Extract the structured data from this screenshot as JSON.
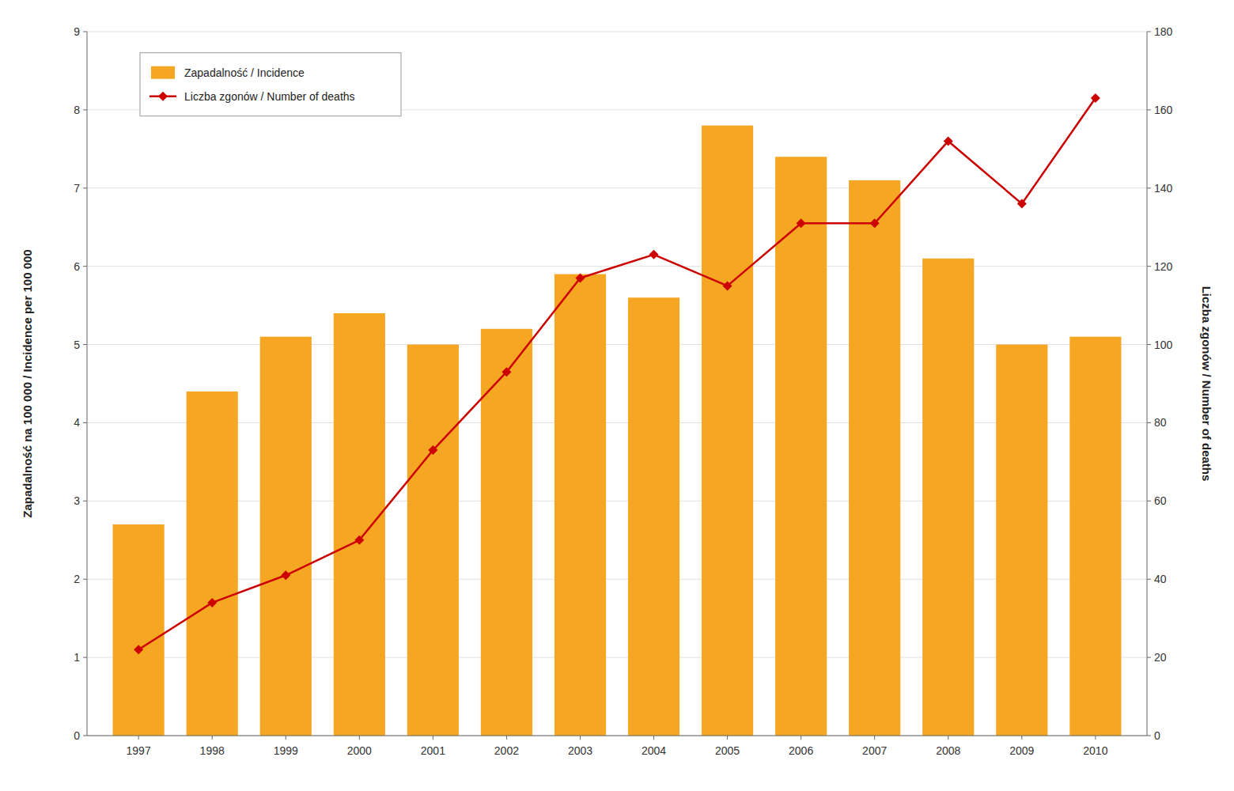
{
  "chart_data": {
    "type": "bar",
    "x": [
      1997,
      1998,
      1999,
      2000,
      2001,
      2002,
      2003,
      2004,
      2005,
      2006,
      2007,
      2008,
      2009,
      2010
    ],
    "xlim": [
      1996.3,
      2010.7
    ],
    "xticks": [
      1997,
      1998,
      1999,
      2000,
      2001,
      2002,
      2003,
      2004,
      2005,
      2006,
      2007,
      2008,
      2009,
      2010
    ],
    "ylabel": "Zapadalność na 100 000 / Incidence per 100 000",
    "y2label": "Liczba zgonów / Number of deaths",
    "ylim": [
      0,
      9
    ],
    "yticks": [
      0,
      1,
      2,
      3,
      4,
      5,
      6,
      7,
      8,
      9
    ],
    "y2lim": [
      0,
      180
    ],
    "y2ticks": [
      0,
      20,
      40,
      60,
      80,
      100,
      120,
      140,
      160,
      180
    ],
    "grid": true,
    "legend": "upper left",
    "series": [
      {
        "name": "Zapadalność / Incidence",
        "type": "bar",
        "color": "#F5A623",
        "values": [
          2.7,
          4.4,
          5.1,
          5.4,
          5.0,
          5.2,
          5.9,
          5.6,
          7.8,
          7.4,
          7.1,
          6.1,
          5.0,
          5.1
        ]
      },
      {
        "name": "Liczba zgonów / Number of deaths",
        "type": "line",
        "color": "#CC0000",
        "marker": "diamond",
        "axis": "y2",
        "values": [
          22,
          34,
          41,
          50,
          73,
          93,
          117,
          123,
          115,
          131,
          131,
          152,
          136,
          163
        ]
      }
    ]
  }
}
